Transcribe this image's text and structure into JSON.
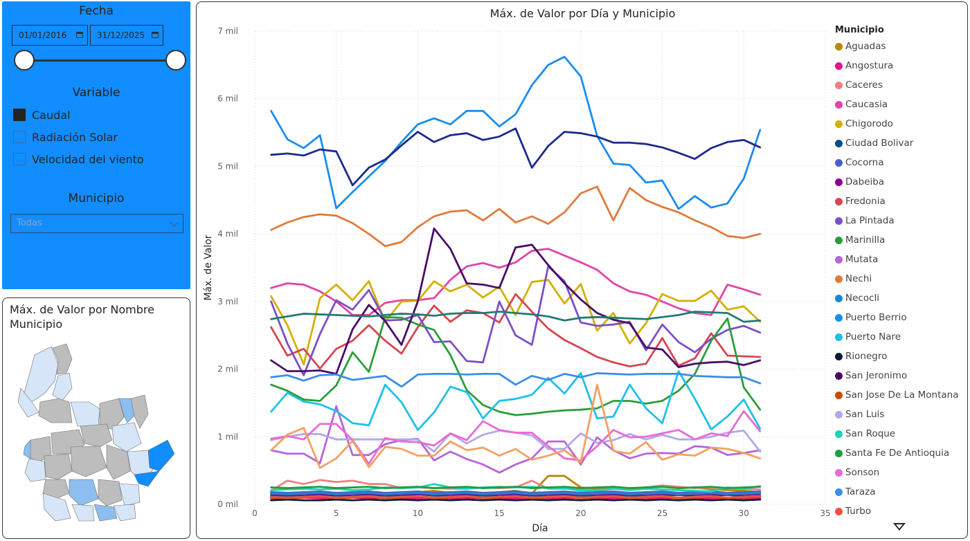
{
  "filters": {
    "date_title": "Fecha",
    "date_start": "01/01/2016",
    "date_end": "31/12/2025",
    "variable_title": "Variable",
    "variables": [
      {
        "label": "Caudal",
        "checked": true
      },
      {
        "label": "Radiación Solar",
        "checked": false
      },
      {
        "label": "Velocidad del viento",
        "checked": false
      }
    ],
    "municipio_title": "Municipio",
    "municipio_value": "Todas"
  },
  "map": {
    "title": "Máx. de Valor por Nombre Municipio"
  },
  "colors": {
    "panel_bg": "#118DFF",
    "map_gray": "#BDBDBD",
    "map_light_blue": "#D6E6F8",
    "map_mid_blue": "#8DBEF0",
    "map_strong_blue": "#118DFF"
  },
  "chart_data": {
    "type": "line",
    "title": "Máx. de Valor por Día y Municipio",
    "xlabel": "Día",
    "ylabel": "Máx. de Valor",
    "xlim": [
      0,
      35
    ],
    "ylim": [
      0,
      7000
    ],
    "xticks": [
      "0",
      "5",
      "10",
      "15",
      "20",
      "25",
      "30",
      "35"
    ],
    "yticks": [
      "0 mil",
      "1 mil",
      "2 mil",
      "3 mil",
      "4 mil",
      "5 mil",
      "6 mil",
      "7 mil"
    ],
    "grid": true,
    "legend_title": "Municipio",
    "legend_position": "right",
    "x": [
      1,
      2,
      3,
      4,
      5,
      6,
      7,
      8,
      9,
      10,
      11,
      12,
      13,
      14,
      15,
      16,
      17,
      18,
      19,
      20,
      21,
      22,
      23,
      24,
      25,
      26,
      27,
      28,
      29,
      30,
      31
    ],
    "series": [
      {
        "name": "Aguadas",
        "color": "#B8860B",
        "values": [
          140,
          150,
          150,
          160,
          150,
          170,
          150,
          160,
          150,
          180,
          200,
          170,
          160,
          160,
          180,
          200,
          160,
          420,
          420,
          250,
          230,
          240,
          230,
          250,
          260,
          240,
          250,
          220,
          210,
          200,
          180
        ]
      },
      {
        "name": "Angostura",
        "color": "#E8128A",
        "values": [
          90,
          90,
          100,
          90,
          90,
          100,
          90,
          100,
          90,
          90,
          100,
          90,
          90,
          100,
          90,
          90,
          100,
          90,
          90,
          100,
          90,
          90,
          100,
          90,
          90,
          100,
          90,
          90,
          100,
          90,
          90
        ]
      },
      {
        "name": "Caceres",
        "color": "#F08080",
        "values": [
          200,
          350,
          300,
          360,
          330,
          350,
          300,
          300,
          240,
          250,
          240,
          230,
          230,
          250,
          240,
          250,
          350,
          230,
          230,
          230,
          200,
          230,
          230,
          250,
          280,
          260,
          240,
          250,
          240,
          230,
          220
        ]
      },
      {
        "name": "Caucasia",
        "color": "#E044A7",
        "values": [
          3200,
          3270,
          3250,
          3150,
          3000,
          2800,
          2800,
          2980,
          3020,
          3020,
          3050,
          3320,
          3520,
          3570,
          3500,
          3580,
          3750,
          3780,
          3680,
          3580,
          3470,
          3270,
          3150,
          3100,
          3000,
          2900,
          2830,
          2800,
          3250,
          3180,
          3100
        ]
      },
      {
        "name": "Chigorodo",
        "color": "#D4B000",
        "values": [
          3080,
          2650,
          2070,
          3050,
          3250,
          3020,
          3300,
          2700,
          3000,
          3010,
          3300,
          3150,
          3250,
          3060,
          3220,
          2800,
          3290,
          3320,
          2970,
          3260,
          2570,
          2830,
          2380,
          2680,
          3110,
          3010,
          3010,
          3160,
          2880,
          2930,
          2700
        ]
      },
      {
        "name": "Ciudad Bolivar",
        "color": "#0E4D8A",
        "values": [
          120,
          130,
          120,
          140,
          130,
          120,
          140,
          130,
          120,
          150,
          130,
          120,
          140,
          130,
          120,
          140,
          130,
          120,
          140,
          130,
          120,
          140,
          130,
          120,
          130,
          140,
          120,
          130,
          140,
          120,
          130
        ]
      },
      {
        "name": "Cocorna",
        "color": "#4A60C8",
        "values": [
          180,
          170,
          180,
          190,
          170,
          180,
          190,
          170,
          180,
          190,
          170,
          180,
          190,
          170,
          180,
          190,
          170,
          180,
          190,
          170,
          180,
          190,
          170,
          180,
          190,
          170,
          180,
          190,
          170,
          180,
          190
        ]
      },
      {
        "name": "Dabeiba",
        "color": "#8B008B",
        "values": [
          150,
          140,
          150,
          160,
          140,
          150,
          160,
          140,
          150,
          160,
          140,
          150,
          160,
          140,
          150,
          160,
          140,
          150,
          160,
          140,
          150,
          160,
          140,
          150,
          160,
          140,
          150,
          160,
          140,
          150,
          160
        ]
      },
      {
        "name": "Fredonia",
        "color": "#D64550",
        "values": [
          2620,
          2200,
          2300,
          2010,
          2300,
          2420,
          2650,
          2420,
          2230,
          2620,
          2940,
          2700,
          2870,
          2830,
          2690,
          3110,
          2850,
          2600,
          2430,
          2310,
          2180,
          2100,
          2040,
          2080,
          2460,
          2050,
          2160,
          2530,
          2200,
          2190,
          2180
        ]
      },
      {
        "name": "La Pintada",
        "color": "#7B4FC8",
        "values": [
          3000,
          2380,
          1910,
          2520,
          3020,
          2880,
          3170,
          2720,
          2730,
          2800,
          2400,
          2410,
          2120,
          2100,
          3000,
          2500,
          2360,
          3520,
          3300,
          2690,
          2640,
          2660,
          2700,
          2280,
          2660,
          2400,
          2250,
          2450,
          2580,
          2640,
          2540
        ]
      },
      {
        "name": "Marinilla",
        "color": "#2A9D3A",
        "values": [
          1770,
          1680,
          1550,
          1530,
          1760,
          2250,
          1960,
          2770,
          2760,
          2660,
          2580,
          2210,
          1690,
          1470,
          1370,
          1320,
          1340,
          1370,
          1390,
          1400,
          1420,
          1530,
          1530,
          1490,
          1530,
          1680,
          1930,
          2420,
          2750,
          1730,
          1400
        ]
      },
      {
        "name": "Mutata",
        "color": "#B565D6",
        "values": [
          800,
          750,
          750,
          610,
          1450,
          730,
          730,
          890,
          950,
          970,
          650,
          780,
          670,
          590,
          470,
          590,
          680,
          930,
          930,
          590,
          990,
          800,
          680,
          750,
          760,
          750,
          860,
          840,
          730,
          760,
          800
        ]
      },
      {
        "name": "Nechi",
        "color": "#E07A3A",
        "values": [
          4060,
          4170,
          4250,
          4290,
          4270,
          4160,
          4000,
          3820,
          3880,
          4100,
          4260,
          4330,
          4350,
          4200,
          4370,
          4170,
          4260,
          4150,
          4320,
          4600,
          4700,
          4200,
          4680,
          4500,
          4400,
          4320,
          4200,
          4100,
          3970,
          3940,
          4000
        ]
      },
      {
        "name": "Necocli",
        "color": "#1A8ACB",
        "values": [
          160,
          150,
          160,
          170,
          150,
          160,
          170,
          150,
          160,
          170,
          150,
          160,
          170,
          150,
          160,
          170,
          150,
          160,
          170,
          150,
          160,
          170,
          150,
          160,
          170,
          150,
          160,
          170,
          150,
          160,
          170
        ]
      },
      {
        "name": "Puerto Berrio",
        "color": "#1A8CF0",
        "values": [
          5820,
          5400,
          5270,
          5460,
          4380,
          4620,
          4850,
          5080,
          5360,
          5620,
          5710,
          5620,
          5820,
          5820,
          5590,
          5770,
          6200,
          6500,
          6620,
          6330,
          5450,
          5040,
          5020,
          4760,
          4790,
          4370,
          4560,
          4390,
          4450,
          4820,
          5540
        ]
      },
      {
        "name": "Puerto Nare",
        "color": "#1EC0E6",
        "values": [
          1370,
          1650,
          1520,
          1480,
          1380,
          1200,
          1170,
          1770,
          1510,
          1100,
          1360,
          1740,
          1660,
          1270,
          1530,
          1560,
          1620,
          1870,
          1640,
          1940,
          1270,
          1300,
          1770,
          1420,
          1200,
          1970,
          1560,
          1110,
          1300,
          1550,
          1120
        ]
      },
      {
        "name": "Rionegro",
        "color": "#0B1A3A",
        "values": [
          60,
          70,
          60,
          60,
          70,
          60,
          70,
          60,
          70,
          60,
          70,
          60,
          70,
          60,
          70,
          60,
          70,
          60,
          70,
          60,
          70,
          60,
          70,
          60,
          70,
          60,
          70,
          60,
          70,
          60,
          70
        ]
      },
      {
        "name": "San Jeronimo",
        "color": "#4B0A6A",
        "values": [
          2130,
          1970,
          1970,
          1980,
          1930,
          2590,
          2950,
          2710,
          2360,
          3000,
          4080,
          3780,
          3270,
          3250,
          3200,
          3800,
          3840,
          3540,
          3270,
          3030,
          2830,
          2730,
          2680,
          2320,
          2290,
          2030,
          2080,
          2100,
          2110,
          2060,
          2130
        ]
      },
      {
        "name": "San Jose De La Montana",
        "color": "#C44E00",
        "values": [
          100,
          90,
          100,
          110,
          90,
          100,
          110,
          90,
          100,
          110,
          90,
          100,
          110,
          90,
          100,
          110,
          90,
          100,
          110,
          90,
          100,
          110,
          90,
          100,
          110,
          90,
          100,
          110,
          90,
          100,
          110
        ]
      },
      {
        "name": "San Luis",
        "color": "#B0A8EE",
        "values": [
          950,
          1000,
          1040,
          1040,
          960,
          960,
          960,
          960,
          960,
          960,
          780,
          1050,
          900,
          1030,
          1090,
          1060,
          1020,
          820,
          820,
          1050,
          910,
          950,
          1040,
          960,
          1030,
          960,
          960,
          1000,
          1060,
          1090,
          780
        ]
      },
      {
        "name": "San Roque",
        "color": "#1AD4B4",
        "values": [
          210,
          220,
          230,
          220,
          230,
          210,
          220,
          250,
          240,
          250,
          300,
          250,
          230,
          250,
          260,
          250,
          260,
          240,
          240,
          200,
          210,
          230,
          210,
          230,
          220,
          210,
          200,
          190,
          250,
          230,
          270
        ]
      },
      {
        "name": "Santa Fe De Antioquia",
        "color": "#1E9E40",
        "values": [
          250,
          240,
          250,
          260,
          240,
          250,
          260,
          240,
          250,
          260,
          240,
          250,
          260,
          240,
          250,
          260,
          240,
          250,
          260,
          240,
          250,
          260,
          240,
          250,
          260,
          240,
          250,
          260,
          240,
          250,
          260
        ]
      },
      {
        "name": "Sonson",
        "color": "#E86BD5",
        "values": [
          970,
          1010,
          960,
          1190,
          1190,
          950,
          600,
          980,
          930,
          920,
          870,
          1050,
          950,
          1230,
          1100,
          1060,
          1060,
          860,
          680,
          650,
          860,
          1100,
          990,
          1000,
          1050,
          1100,
          960,
          1050,
          1010,
          1380,
          1080
        ]
      },
      {
        "name": "Taraza",
        "color": "#3B8DE8",
        "values": [
          1880,
          1910,
          1830,
          1910,
          1920,
          1840,
          1870,
          1900,
          1740,
          1920,
          1930,
          1930,
          1920,
          1930,
          1930,
          1770,
          1900,
          1840,
          1930,
          1880,
          1940,
          1930,
          1920,
          1930,
          1930,
          1930,
          1900,
          1890,
          1880,
          1880,
          1790
        ]
      },
      {
        "name": "Turbo",
        "color": "#F05040",
        "values": [
          110,
          100,
          110,
          120,
          100,
          110,
          120,
          100,
          110,
          120,
          100,
          110,
          120,
          100,
          110,
          120,
          100,
          110,
          120,
          100,
          110,
          120,
          100,
          110,
          120,
          100,
          110,
          120,
          100,
          110,
          120
        ]
      },
      {
        "name": "",
        "color": "#1C2A8A",
        "values": [
          5170,
          5190,
          5160,
          5250,
          5220,
          4720,
          4980,
          5100,
          5310,
          5510,
          5360,
          5460,
          5490,
          5390,
          5440,
          5560,
          4980,
          5300,
          5510,
          5490,
          5440,
          5350,
          5350,
          5330,
          5280,
          5200,
          5110,
          5270,
          5360,
          5390,
          5280
        ]
      },
      {
        "name": "",
        "color": "#227A72",
        "values": [
          2740,
          2780,
          2820,
          2810,
          2800,
          2790,
          2780,
          2800,
          2820,
          2810,
          2790,
          2820,
          2830,
          2830,
          2850,
          2830,
          2810,
          2780,
          2720,
          2760,
          2770,
          2760,
          2750,
          2740,
          2770,
          2800,
          2850,
          2840,
          2830,
          2700,
          2720
        ]
      },
      {
        "name": "",
        "color": "#F5A060",
        "values": [
          800,
          1030,
          1130,
          540,
          680,
          940,
          550,
          850,
          820,
          720,
          720,
          930,
          800,
          840,
          720,
          820,
          660,
          720,
          800,
          620,
          1770,
          790,
          750,
          920,
          660,
          740,
          720,
          840,
          820,
          760,
          680
        ]
      }
    ]
  }
}
